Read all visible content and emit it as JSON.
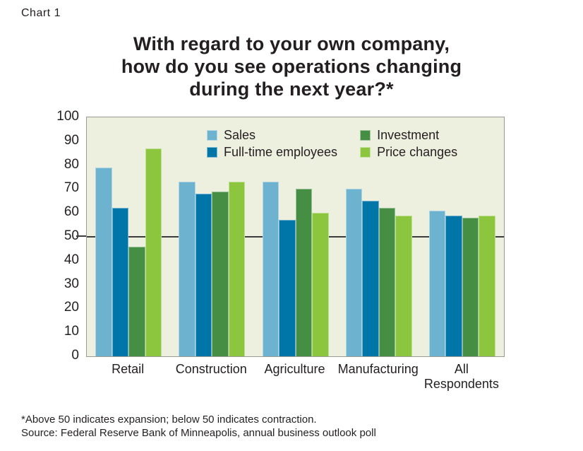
{
  "page": {
    "chart_label": "Chart 1",
    "footnote": "*Above 50 indicates expansion; below 50 indicates contraction.",
    "source": "Source: Federal Reserve Bank of Minneapolis, annual business outlook poll"
  },
  "chart_data": {
    "type": "bar",
    "title": "With regard to your own company, how do you see operations changing during the next year?*",
    "title_lines": [
      "With regard to your own company,",
      "how do you see operations changing",
      "during the next year?*"
    ],
    "categories": [
      "Retail",
      "Construction",
      "Agriculture",
      "Manufacturing",
      "All\nRespondents"
    ],
    "series": [
      {
        "name": "Sales",
        "color": "#6db2ce",
        "values": [
          79,
          73,
          73,
          70,
          61
        ]
      },
      {
        "name": "Full-time employees",
        "color": "#0076a8",
        "values": [
          62,
          68,
          57,
          65,
          59
        ]
      },
      {
        "name": "Investment",
        "color": "#458e43",
        "values": [
          46,
          69,
          70,
          62,
          58
        ]
      },
      {
        "name": "Price changes",
        "color": "#8cc63e",
        "values": [
          87,
          73,
          60,
          59,
          59
        ]
      }
    ],
    "ylabel": "",
    "xlabel": "",
    "ylim": [
      0,
      100
    ],
    "ytick_step": 10,
    "reference_line": 50,
    "grid": false,
    "legend_position": "top-inside",
    "plot_bg": "#eef0df",
    "plot_border": "#9a9a93"
  }
}
